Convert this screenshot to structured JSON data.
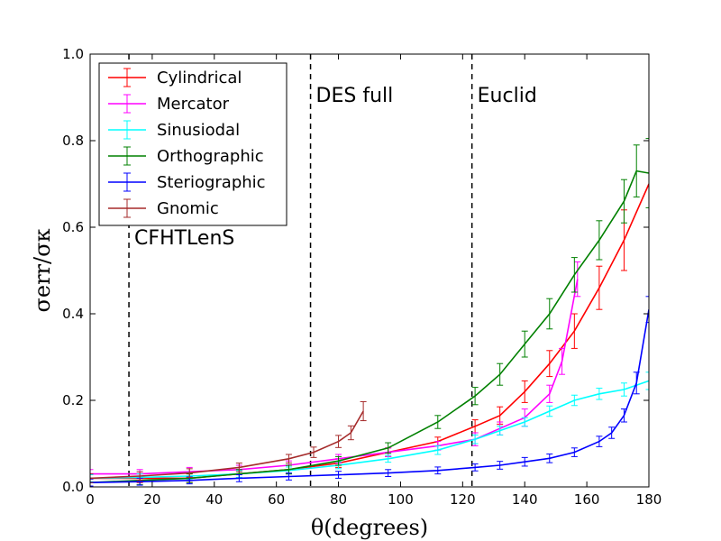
{
  "chart_data": {
    "type": "line",
    "xlabel": "θ(degrees)",
    "ylabel": "σerr/σκ",
    "xlim": [
      0,
      180
    ],
    "ylim": [
      0,
      1.0
    ],
    "x_ticks": [
      "0",
      "20",
      "40",
      "60",
      "80",
      "100",
      "120",
      "140",
      "160",
      "180"
    ],
    "y_ticks": [
      "0.0",
      "0.2",
      "0.4",
      "0.6",
      "0.8",
      "1.0"
    ],
    "legend_position": "top-left",
    "vertical_lines": [
      {
        "x": 12.5,
        "label": "CFHTLenS",
        "label_y": 0.56
      },
      {
        "x": 71,
        "label": "DES full",
        "label_y": 0.89
      },
      {
        "x": 123,
        "label": "Euclid",
        "label_y": 0.89
      }
    ],
    "series": [
      {
        "name": "Cylindrical",
        "color": "#ff0000",
        "x": [
          0,
          16,
          32,
          48,
          64,
          80,
          96,
          112,
          124,
          132,
          140,
          148,
          156,
          164,
          172,
          180
        ],
        "y": [
          0.02,
          0.02,
          0.02,
          0.03,
          0.04,
          0.055,
          0.08,
          0.105,
          0.14,
          0.165,
          0.22,
          0.285,
          0.36,
          0.46,
          0.57,
          0.7
        ],
        "err": [
          0.01,
          0.01,
          0.01,
          0.01,
          0.01,
          0.01,
          0.01,
          0.01,
          0.015,
          0.02,
          0.025,
          0.03,
          0.04,
          0.05,
          0.07,
          0.1
        ]
      },
      {
        "name": "Mercator",
        "color": "#ff00ff",
        "x": [
          0,
          16,
          32,
          48,
          64,
          80,
          96,
          112,
          124,
          132,
          140,
          148,
          152,
          157
        ],
        "y": [
          0.03,
          0.03,
          0.035,
          0.04,
          0.05,
          0.065,
          0.08,
          0.095,
          0.11,
          0.135,
          0.16,
          0.215,
          0.29,
          0.48
        ],
        "err": [
          0.01,
          0.01,
          0.01,
          0.01,
          0.01,
          0.01,
          0.01,
          0.01,
          0.015,
          0.015,
          0.02,
          0.02,
          0.03,
          0.04
        ]
      },
      {
        "name": "Sinusiodal",
        "color": "#00ffff",
        "x": [
          0,
          16,
          32,
          48,
          64,
          80,
          96,
          112,
          124,
          132,
          140,
          148,
          156,
          164,
          172,
          180
        ],
        "y": [
          0.02,
          0.022,
          0.025,
          0.03,
          0.038,
          0.05,
          0.065,
          0.085,
          0.11,
          0.13,
          0.15,
          0.175,
          0.2,
          0.215,
          0.225,
          0.245
        ],
        "err": [
          0.008,
          0.008,
          0.008,
          0.008,
          0.008,
          0.008,
          0.008,
          0.01,
          0.01,
          0.01,
          0.01,
          0.012,
          0.012,
          0.013,
          0.015,
          0.02
        ]
      },
      {
        "name": "Orthographic",
        "color": "#008000",
        "x": [
          0,
          16,
          32,
          48,
          64,
          80,
          96,
          112,
          124,
          132,
          140,
          148,
          156,
          164,
          172,
          176,
          180
        ],
        "y": [
          0.01,
          0.015,
          0.02,
          0.03,
          0.04,
          0.06,
          0.09,
          0.15,
          0.21,
          0.26,
          0.33,
          0.4,
          0.49,
          0.57,
          0.66,
          0.73,
          0.725
        ],
        "err": [
          0.01,
          0.01,
          0.01,
          0.01,
          0.01,
          0.01,
          0.012,
          0.015,
          0.02,
          0.025,
          0.03,
          0.035,
          0.04,
          0.045,
          0.05,
          0.06,
          0.08
        ]
      },
      {
        "name": "Steriographic",
        "color": "#0000ff",
        "x": [
          0,
          16,
          32,
          48,
          64,
          80,
          96,
          112,
          124,
          132,
          140,
          148,
          156,
          164,
          168,
          172,
          176,
          180
        ],
        "y": [
          0.01,
          0.012,
          0.015,
          0.02,
          0.024,
          0.028,
          0.032,
          0.038,
          0.045,
          0.05,
          0.058,
          0.066,
          0.08,
          0.105,
          0.125,
          0.165,
          0.24,
          0.41
        ],
        "err": [
          0.008,
          0.008,
          0.008,
          0.008,
          0.008,
          0.008,
          0.008,
          0.008,
          0.008,
          0.009,
          0.01,
          0.01,
          0.01,
          0.012,
          0.013,
          0.015,
          0.025,
          0.03
        ]
      },
      {
        "name": "Gnomic",
        "color": "#a52a2a",
        "x": [
          0,
          16,
          32,
          48,
          64,
          72,
          80,
          84,
          88
        ],
        "y": [
          0.02,
          0.025,
          0.032,
          0.045,
          0.065,
          0.08,
          0.105,
          0.125,
          0.175
        ],
        "err": [
          0.01,
          0.01,
          0.01,
          0.01,
          0.01,
          0.012,
          0.014,
          0.016,
          0.022
        ]
      }
    ]
  }
}
